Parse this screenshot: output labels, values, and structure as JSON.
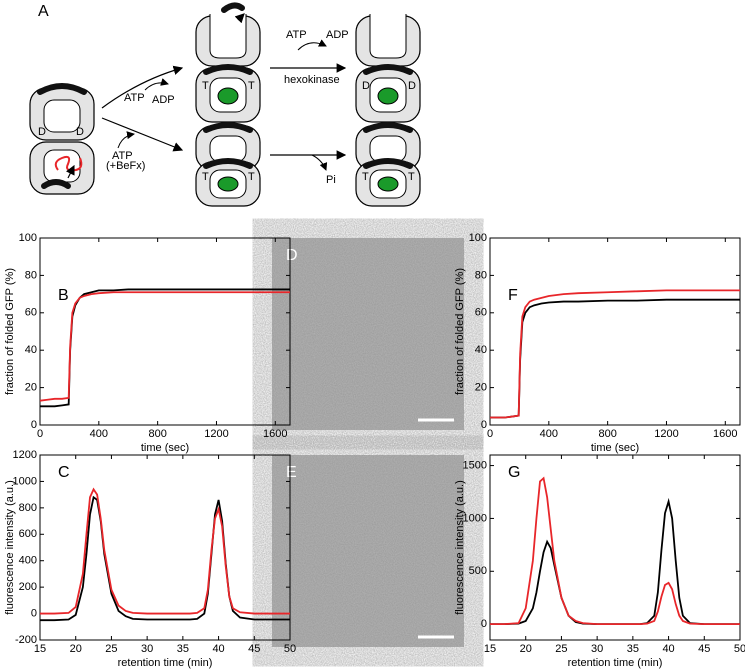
{
  "diagram": {
    "label": "A",
    "texts": [
      "D",
      "D",
      "ATP",
      "ADP",
      "ATP",
      "(+BeFx)",
      "T",
      "T",
      "ATP",
      "ADP",
      "hexokinase",
      "D",
      "D",
      "T",
      "T",
      "Pi",
      "T",
      "T"
    ]
  },
  "micrographs": [
    {
      "label": "D"
    },
    {
      "label": "E"
    }
  ],
  "chart_data": [
    {
      "type": "line",
      "panel": "B",
      "xlabel": "time (sec)",
      "ylabel": "fraction of folded GFP (%)",
      "x": [
        0,
        50,
        100,
        150,
        195,
        205,
        220,
        240,
        270,
        300,
        350,
        400,
        500,
        600,
        800,
        1000,
        1200,
        1400,
        1600,
        1700
      ],
      "xlim": [
        0,
        1700
      ],
      "xticks": [
        0,
        400,
        800,
        1200,
        1600
      ],
      "ylim": [
        0,
        100
      ],
      "yticks": [
        0,
        20,
        40,
        60,
        80,
        100
      ],
      "series": [
        {
          "color": "#000000",
          "values": [
            10,
            10,
            10,
            10.5,
            11,
            40,
            58,
            64,
            68,
            70,
            71,
            72,
            72,
            72.5,
            72.5,
            72.5,
            72.5,
            72.5,
            72.5,
            72.5
          ]
        },
        {
          "color": "#e8262a",
          "values": [
            13,
            13.5,
            14,
            14,
            14.5,
            42,
            60,
            65,
            68,
            69,
            70,
            70.5,
            71,
            71,
            71,
            71,
            71,
            71,
            71,
            71
          ]
        }
      ]
    },
    {
      "type": "line",
      "panel": "C",
      "xlabel": "retention time (min)",
      "ylabel": "fluorescence intensity (a.u.)",
      "x": [
        15,
        17,
        19,
        20,
        21,
        21.5,
        22,
        22.5,
        23,
        23.5,
        24,
        25,
        26,
        27,
        28,
        30,
        33,
        36,
        37,
        38,
        38.5,
        39,
        39.5,
        40,
        40.5,
        41,
        41.5,
        42,
        43,
        45,
        47,
        50
      ],
      "xlim": [
        15,
        50
      ],
      "xticks": [
        15,
        20,
        25,
        30,
        35,
        40,
        45,
        50
      ],
      "ylim": [
        -200,
        1200
      ],
      "yticks": [
        -200,
        0,
        200,
        400,
        600,
        800,
        1000,
        1200
      ],
      "series": [
        {
          "color": "#000000",
          "values": [
            -50,
            -50,
            -45,
            -10,
            200,
            450,
            750,
            880,
            860,
            700,
            450,
            150,
            20,
            -20,
            -40,
            -45,
            -45,
            -45,
            -40,
            0,
            150,
            450,
            750,
            860,
            700,
            380,
            130,
            20,
            -30,
            -45,
            -45,
            -45
          ]
        },
        {
          "color": "#e8262a",
          "values": [
            0,
            0,
            5,
            50,
            300,
            600,
            880,
            940,
            900,
            720,
            480,
            180,
            60,
            20,
            5,
            0,
            0,
            0,
            5,
            40,
            180,
            480,
            720,
            790,
            660,
            360,
            130,
            40,
            10,
            0,
            0,
            0
          ]
        }
      ]
    },
    {
      "type": "line",
      "panel": "F",
      "xlabel": "time (sec)",
      "ylabel": "fraction of folded GFP (%)",
      "x": [
        0,
        50,
        100,
        150,
        195,
        205,
        220,
        240,
        270,
        300,
        350,
        400,
        500,
        600,
        800,
        1000,
        1200,
        1400,
        1600,
        1700
      ],
      "xlim": [
        0,
        1700
      ],
      "xticks": [
        0,
        400,
        800,
        1200,
        1600
      ],
      "ylim": [
        0,
        100
      ],
      "yticks": [
        0,
        20,
        40,
        60,
        80,
        100
      ],
      "series": [
        {
          "color": "#000000",
          "values": [
            4,
            4,
            4,
            4.5,
            5,
            35,
            55,
            60,
            63,
            64,
            65,
            65.5,
            66,
            66,
            66.5,
            66.5,
            67,
            67,
            67,
            67
          ]
        },
        {
          "color": "#e8262a",
          "values": [
            4,
            4,
            4,
            4.5,
            5,
            38,
            58,
            63,
            66,
            67,
            68,
            69,
            70,
            70.5,
            71,
            71.5,
            72,
            72,
            72,
            72
          ]
        }
      ]
    },
    {
      "type": "line",
      "panel": "G",
      "xlabel": "retention time (min)",
      "ylabel": "fluorescence intensity (a.u.)",
      "x": [
        15,
        17,
        19,
        20,
        21,
        21.5,
        22,
        22.5,
        23,
        23.5,
        24,
        25,
        26,
        27,
        28,
        30,
        33,
        36,
        37,
        38,
        38.5,
        39,
        39.5,
        40,
        40.5,
        41,
        41.5,
        42,
        43,
        45,
        47,
        50
      ],
      "xlim": [
        15,
        50
      ],
      "xticks": [
        15,
        20,
        25,
        30,
        35,
        40,
        45,
        50
      ],
      "ylim": [
        -150,
        1600
      ],
      "yticks": [
        0,
        500,
        1000,
        1500
      ],
      "series": [
        {
          "color": "#000000",
          "values": [
            0,
            0,
            5,
            30,
            150,
            300,
            500,
            680,
            780,
            720,
            560,
            250,
            80,
            20,
            5,
            0,
            0,
            0,
            10,
            80,
            300,
            700,
            1050,
            1160,
            1000,
            600,
            250,
            80,
            10,
            0,
            0,
            0
          ]
        },
        {
          "color": "#e8262a",
          "values": [
            0,
            0,
            10,
            150,
            600,
            1000,
            1350,
            1380,
            1200,
            900,
            600,
            250,
            80,
            30,
            10,
            0,
            0,
            0,
            5,
            30,
            120,
            260,
            370,
            390,
            330,
            190,
            80,
            30,
            5,
            0,
            0,
            0
          ]
        }
      ]
    }
  ]
}
